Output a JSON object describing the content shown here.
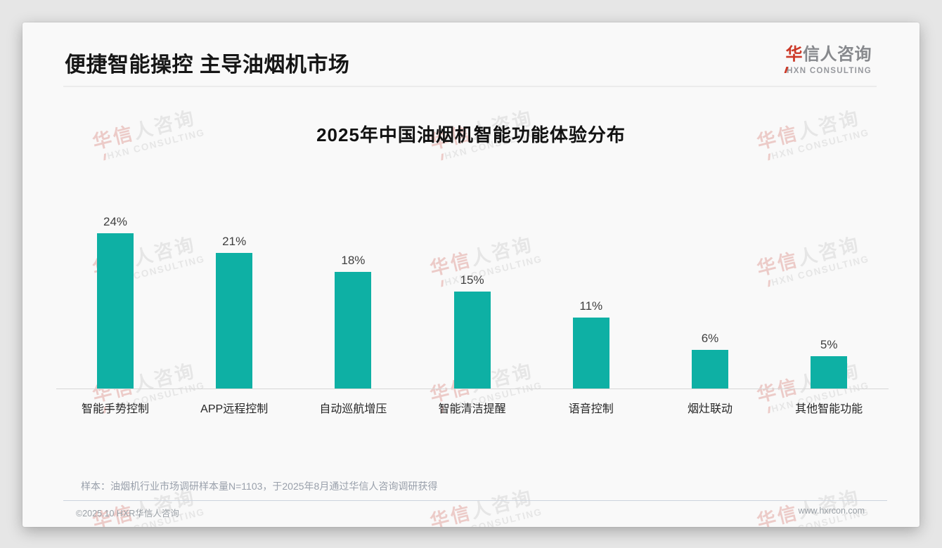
{
  "header": {
    "title": "便捷智能操控 主导油烟机市场"
  },
  "logo": {
    "cn_red": "华",
    "cn_gray": "信人咨询",
    "en": "HXN CONSULTING"
  },
  "watermark": {
    "cn_red": "华信",
    "cn_gray": "人咨询",
    "en": "HXN CONSULTING"
  },
  "chart_data": {
    "type": "bar",
    "title": "2025年中国油烟机智能功能体验分布",
    "categories": [
      "智能手势控制",
      "APP远程控制",
      "自动巡航增压",
      "智能清洁提醒",
      "语音控制",
      "烟灶联动",
      "其他智能功能"
    ],
    "values": [
      24,
      21,
      18,
      15,
      11,
      6,
      5
    ],
    "value_labels": [
      "24%",
      "21%",
      "18%",
      "15%",
      "11%",
      "6%",
      "5%"
    ],
    "unit": "%",
    "xlabel": "",
    "ylabel": "",
    "ylim": [
      0,
      26
    ],
    "grid": false,
    "legend": "none",
    "bar_color": "#0EB0A4"
  },
  "footnote": {
    "sample": "样本：油烟机行业市场调研样本量N=1103，于2025年8月通过华信人咨询调研获得"
  },
  "footer": {
    "left": "©2025.10 HXR华信人咨询",
    "right": "www.hxrcon.com"
  },
  "colors": {
    "bar_teal": "#0EB0A4",
    "brand_red": "#CC3928",
    "title_text": "#161616",
    "muted_text": "#9AA0A6"
  }
}
